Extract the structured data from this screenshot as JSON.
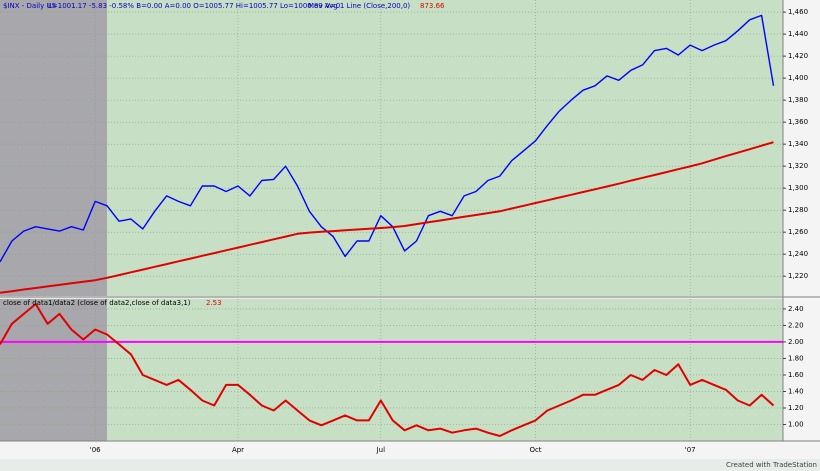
{
  "chart_data": [
    {
      "type": "line",
      "title": "$INX - Daily  US",
      "quote": "L=1001.17  -5.83  -0.58%  B=0.00  A=0.00  O=1005.77  Hi=1005.77  Lo=1000.89  V=0",
      "categories": [
        null,
        null,
        null,
        null,
        null,
        null,
        null,
        null,
        "'06",
        null,
        null,
        null,
        null,
        null,
        null,
        null,
        null,
        null,
        null,
        null,
        "Apr",
        null,
        null,
        null,
        null,
        null,
        null,
        null,
        null,
        null,
        null,
        null,
        "Jul",
        null,
        null,
        null,
        null,
        null,
        null,
        null,
        null,
        null,
        null,
        null,
        null,
        "Oct",
        null,
        null,
        null,
        null,
        null,
        null,
        null,
        null,
        null,
        null,
        null,
        null,
        "'07",
        null,
        null,
        null,
        null,
        null,
        null,
        null
      ],
      "series": [
        {
          "name": "$INX",
          "color": "#0000ff",
          "values": [
            1233,
            1252,
            1261,
            1265,
            1263,
            1261,
            1265,
            1262,
            1288,
            1284,
            1270,
            1272,
            1263,
            1279,
            1293,
            1288,
            1284,
            1302,
            1302,
            1297,
            1302,
            1293,
            1307,
            1308,
            1320,
            1302,
            1279,
            1265,
            1256,
            1238,
            1252,
            1252,
            1275,
            1265,
            1243,
            1252,
            1275,
            1279,
            1275,
            1293,
            1297,
            1307,
            1311,
            1325,
            1334,
            1343,
            1357,
            1370,
            1380,
            1389,
            1393,
            1402,
            1398,
            1407,
            1412,
            1425,
            1427,
            1421,
            1430,
            1425,
            1430,
            1434,
            1443,
            1453,
            1457,
            1393
          ]
        },
        {
          "name": "Mov Avg 1 Line (Close,200,0)",
          "color": "#e00000",
          "last_label": "873.66",
          "values": [
            1205,
            1206.4,
            1207.9,
            1209.3,
            1210.7,
            1212.1,
            1213.6,
            1215,
            1216.4,
            1218.5,
            1221,
            1223.5,
            1226,
            1228.5,
            1231,
            1233.5,
            1236,
            1238.5,
            1241,
            1243.5,
            1246,
            1248.5,
            1251,
            1253.5,
            1256,
            1258.5,
            1259.6,
            1260.3,
            1261,
            1261.7,
            1262.4,
            1263.1,
            1263.8,
            1264.6,
            1265.6,
            1267.3,
            1269,
            1270.6,
            1272.3,
            1274,
            1275.6,
            1277.3,
            1279,
            1281.5,
            1284,
            1286.5,
            1289,
            1291.5,
            1294,
            1296.5,
            1299,
            1301.5,
            1304.1,
            1306.8,
            1309.4,
            1312,
            1314.6,
            1317.2,
            1319.8,
            1322.6,
            1325.9,
            1329.1,
            1332.2,
            1335.4,
            1338.6,
            1341.8
          ]
        }
      ],
      "ylim": [
        1202,
        1471
      ],
      "yticks": [
        {
          "value": 1220,
          "label": "1,220"
        },
        {
          "value": 1240,
          "label": "1,240"
        },
        {
          "value": 1260,
          "label": "1,260"
        },
        {
          "value": 1280,
          "label": "1,280"
        },
        {
          "value": 1300,
          "label": "1,300"
        },
        {
          "value": 1320,
          "label": "1,320"
        },
        {
          "value": 1340,
          "label": "1,340"
        },
        {
          "value": 1360,
          "label": "1,360"
        },
        {
          "value": 1380,
          "label": "1,380"
        },
        {
          "value": 1400,
          "label": "1,400"
        },
        {
          "value": 1420,
          "label": "1,420"
        },
        {
          "value": 1440,
          "label": "1,440"
        },
        {
          "value": 1460,
          "label": "1,460"
        }
      ],
      "grid": true
    },
    {
      "type": "line",
      "series": [
        {
          "name": "close of data1/data2 (close of data2,close of data3,1)",
          "color": "#e00000",
          "last_label": "2.53",
          "values": [
            1.97,
            2.22,
            2.34,
            2.46,
            2.22,
            2.34,
            2.15,
            2.03,
            2.15,
            2.09,
            1.97,
            1.85,
            1.6,
            1.54,
            1.48,
            1.54,
            1.42,
            1.29,
            1.23,
            1.48,
            1.48,
            1.36,
            1.23,
            1.17,
            1.29,
            1.17,
            1.05,
            0.99,
            1.05,
            1.11,
            1.05,
            1.05,
            1.29,
            1.05,
            0.93,
            0.99,
            0.93,
            0.95,
            0.9,
            0.93,
            0.95,
            0.9,
            0.86,
            0.93,
            0.99,
            1.05,
            1.17,
            1.23,
            1.29,
            1.36,
            1.36,
            1.42,
            1.48,
            1.6,
            1.54,
            1.66,
            1.6,
            1.73,
            1.48,
            1.54,
            1.48,
            1.42,
            1.29,
            1.23,
            1.36,
            1.23
          ]
        }
      ],
      "hline": {
        "value": 2,
        "color": "#ff00ff"
      },
      "ylim": [
        0.8,
        2.52
      ],
      "yticks": [
        {
          "value": 1,
          "label": "1.00"
        },
        {
          "value": 1.2,
          "label": "1.20"
        },
        {
          "value": 1.4,
          "label": "1.40"
        },
        {
          "value": 1.6,
          "label": "1.60"
        },
        {
          "value": 1.8,
          "label": "1.80"
        },
        {
          "value": 2,
          "label": "2.00"
        },
        {
          "value": 2.2,
          "label": "2.20"
        },
        {
          "value": 2.4,
          "label": "2.40"
        }
      ],
      "grid": true
    }
  ],
  "footer": "Created with TradeStation"
}
